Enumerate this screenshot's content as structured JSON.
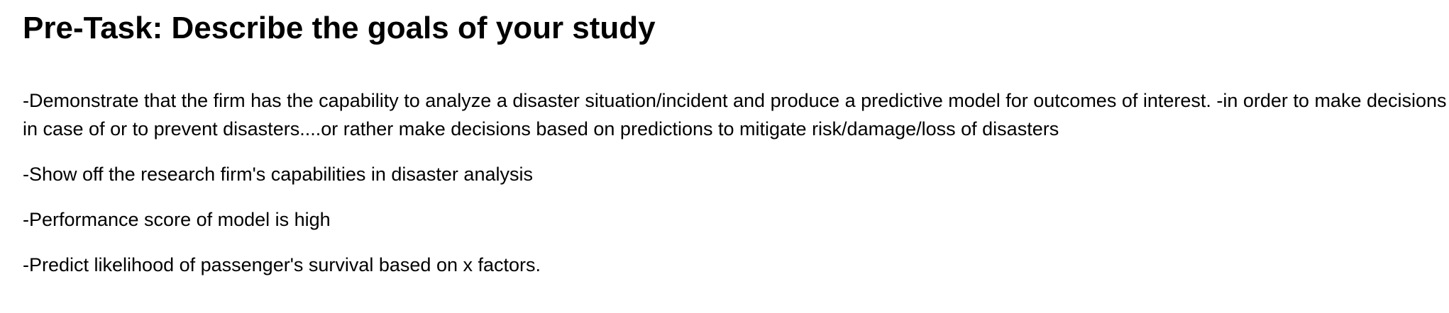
{
  "title": "Pre-Task: Describe the goals of your study",
  "goals": [
    "-Demonstrate that the firm has the capability to analyze a disaster situation/incident and produce a predictive model for outcomes of interest. -in order to make decisions in case of or to prevent disasters....or rather make decisions based on predictions to mitigate risk/damage/loss of disasters",
    "-Show off the research firm's capabilities in disaster analysis",
    "-Performance score of model is high",
    "-Predict likelihood of passenger's survival based on x factors."
  ]
}
